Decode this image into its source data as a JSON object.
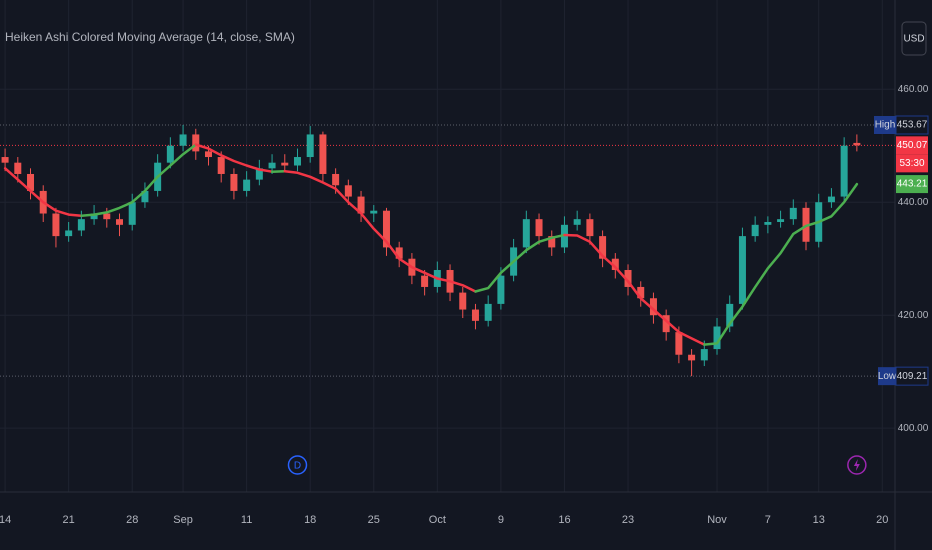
{
  "chart_data": {
    "type": "candlestick",
    "title": "Heiken Ashi Colored Moving Average (14, close, SMA)",
    "currency": "USD",
    "up_color": "#26a69a",
    "down_color": "#ef5350",
    "candles": [
      [
        448,
        449.5,
        445.5,
        447
      ],
      [
        447,
        448,
        443.5,
        445
      ],
      [
        445,
        446,
        440.5,
        442
      ],
      [
        442,
        443,
        436.5,
        438
      ],
      [
        438,
        439,
        432,
        434
      ],
      [
        434,
        436.5,
        433,
        435
      ],
      [
        435,
        438.5,
        434,
        437
      ],
      [
        437,
        439.5,
        436,
        438
      ],
      [
        438,
        439,
        435.5,
        437
      ],
      [
        437,
        438,
        434,
        436
      ],
      [
        436,
        441.5,
        435,
        440
      ],
      [
        440,
        443.5,
        439,
        442
      ],
      [
        442,
        448.5,
        441,
        447
      ],
      [
        447,
        451.5,
        446,
        450
      ],
      [
        450,
        453.67,
        449,
        452
      ],
      [
        452,
        453,
        447.5,
        449
      ],
      [
        449,
        450,
        446.5,
        448
      ],
      [
        448,
        449,
        443.5,
        445
      ],
      [
        445,
        446,
        440.5,
        442
      ],
      [
        442,
        445.5,
        441,
        444
      ],
      [
        444,
        447.5,
        443,
        446
      ],
      [
        446,
        448.5,
        445,
        447
      ],
      [
        447,
        448.5,
        445.5,
        446.5
      ],
      [
        446.5,
        449.5,
        445.5,
        448
      ],
      [
        448,
        453.5,
        447,
        452
      ],
      [
        452,
        452.5,
        443.5,
        445
      ],
      [
        445,
        446,
        441.5,
        443
      ],
      [
        443,
        444,
        439.5,
        441
      ],
      [
        441,
        442,
        436.5,
        438
      ],
      [
        438,
        439.5,
        436.5,
        438.5
      ],
      [
        438.5,
        439,
        430.5,
        432
      ],
      [
        432,
        433,
        428.5,
        430
      ],
      [
        430,
        431,
        425.5,
        427
      ],
      [
        427,
        428,
        423.5,
        425
      ],
      [
        425,
        429.5,
        424,
        428
      ],
      [
        428,
        429,
        422.5,
        424
      ],
      [
        424,
        425,
        419.5,
        421
      ],
      [
        421,
        422,
        417.5,
        419
      ],
      [
        419,
        423.5,
        418,
        422
      ],
      [
        422,
        428.5,
        421,
        427
      ],
      [
        427,
        433.5,
        426,
        432
      ],
      [
        432,
        438.5,
        431,
        437
      ],
      [
        437,
        438,
        432.5,
        434
      ],
      [
        434,
        435,
        430.5,
        432
      ],
      [
        432,
        437.5,
        431,
        436
      ],
      [
        436,
        438.5,
        435,
        437
      ],
      [
        437,
        438,
        432.5,
        434
      ],
      [
        434,
        435,
        428.5,
        430
      ],
      [
        430,
        431,
        426.5,
        428
      ],
      [
        428,
        429,
        423.5,
        425
      ],
      [
        425,
        426,
        421.5,
        423
      ],
      [
        423,
        424,
        418.5,
        420
      ],
      [
        420,
        421,
        415.5,
        417
      ],
      [
        417,
        418,
        411.5,
        413
      ],
      [
        413,
        414,
        409.21,
        412
      ],
      [
        412,
        415.5,
        411,
        414
      ],
      [
        414,
        419.5,
        413,
        418
      ],
      [
        418,
        423.5,
        417,
        422
      ],
      [
        422,
        435.5,
        421,
        434
      ],
      [
        434,
        437.5,
        433,
        436
      ],
      [
        436,
        437.5,
        434.5,
        436.5
      ],
      [
        436.5,
        438.5,
        435.5,
        437
      ],
      [
        437,
        440.5,
        436,
        439
      ],
      [
        439,
        440,
        431.5,
        433
      ],
      [
        433,
        441.5,
        432,
        440
      ],
      [
        440,
        442.5,
        439,
        441
      ],
      [
        441,
        451.5,
        440,
        450
      ],
      [
        450.5,
        452,
        449,
        450.07
      ]
    ],
    "ma": {
      "up_color": "#4caf50",
      "down_color": "#f23645",
      "values": [
        446,
        444,
        442,
        440,
        438.5,
        437.8,
        437.6,
        437.8,
        438.2,
        439,
        440,
        442,
        444.5,
        446.5,
        448.5,
        450.2,
        449.5,
        448.3,
        447.3,
        446.5,
        445.8,
        445.4,
        445.5,
        445.2,
        444.5,
        443.5,
        442.4,
        440,
        438,
        435.3,
        433,
        430,
        428.5,
        427.5,
        426.5,
        426,
        425.3,
        424.2,
        424.8,
        427.5,
        429.5,
        431.5,
        433,
        433.7,
        434.2,
        434.1,
        433,
        430.5,
        428.5,
        426,
        423,
        421,
        419,
        417,
        415.9,
        414.8,
        415,
        418.5,
        421.5,
        425,
        428.3,
        431,
        434.4,
        435.8,
        436.5,
        437.5,
        440,
        443.21
      ]
    },
    "high_label": "High",
    "low_label": "Low",
    "countdown": "53:30",
    "events": [
      {
        "x": 23,
        "label": "D",
        "color": "#2962ff"
      },
      {
        "x": 67,
        "icon": "lightning",
        "color": "#9c27b0"
      }
    ],
    "ylim": [
      388.7,
      475.8
    ],
    "yticks": [
      {
        "value": 400,
        "label": "400.00"
      },
      {
        "value": 420,
        "label": "420.00"
      },
      {
        "value": 440,
        "label": "440.00"
      },
      {
        "value": 460,
        "label": "460.00"
      }
    ],
    "xlim": [
      -0.4,
      70
    ],
    "xticks": [
      {
        "value": 0,
        "label": "14"
      },
      {
        "value": 5,
        "label": "21"
      },
      {
        "value": 10,
        "label": "28"
      },
      {
        "value": 14,
        "label": "Sep"
      },
      {
        "value": 19,
        "label": "11"
      },
      {
        "value": 24,
        "label": "18"
      },
      {
        "value": 29,
        "label": "25"
      },
      {
        "value": 34,
        "label": "Oct"
      },
      {
        "value": 39,
        "label": "9"
      },
      {
        "value": 44,
        "label": "16"
      },
      {
        "value": 49,
        "label": "23"
      },
      {
        "value": 56,
        "label": "Nov"
      },
      {
        "value": 60,
        "label": "7"
      },
      {
        "value": 64,
        "label": "13"
      },
      {
        "value": 69,
        "label": "20"
      }
    ],
    "grid": true
  }
}
